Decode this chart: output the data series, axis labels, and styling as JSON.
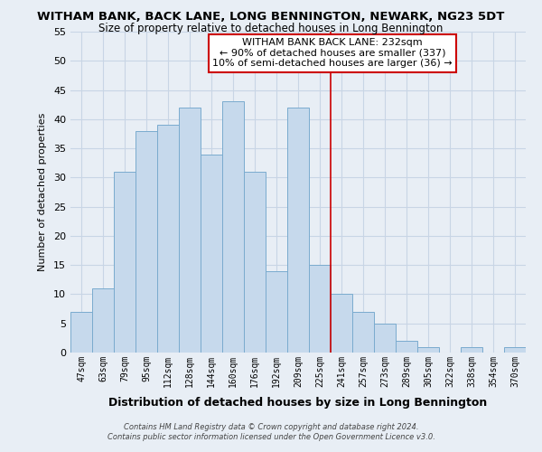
{
  "title": "WITHAM BANK, BACK LANE, LONG BENNINGTON, NEWARK, NG23 5DT",
  "subtitle": "Size of property relative to detached houses in Long Bennington",
  "xlabel": "Distribution of detached houses by size in Long Bennington",
  "ylabel": "Number of detached properties",
  "bar_color": "#c6d9ec",
  "bar_edge_color": "#7aabce",
  "background_color": "#e8eef5",
  "grid_color": "#c8d5e5",
  "bin_labels": [
    "47sqm",
    "63sqm",
    "79sqm",
    "95sqm",
    "112sqm",
    "128sqm",
    "144sqm",
    "160sqm",
    "176sqm",
    "192sqm",
    "209sqm",
    "225sqm",
    "241sqm",
    "257sqm",
    "273sqm",
    "289sqm",
    "305sqm",
    "322sqm",
    "338sqm",
    "354sqm",
    "370sqm"
  ],
  "bar_values": [
    7,
    11,
    31,
    38,
    39,
    42,
    34,
    43,
    31,
    14,
    42,
    15,
    10,
    7,
    5,
    2,
    1,
    0,
    1,
    0,
    1
  ],
  "ylim": [
    0,
    55
  ],
  "yticks": [
    0,
    5,
    10,
    15,
    20,
    25,
    30,
    35,
    40,
    45,
    50,
    55
  ],
  "vline_color": "#cc0000",
  "annotation_title": "WITHAM BANK BACK LANE: 232sqm",
  "annotation_line1": "← 90% of detached houses are smaller (337)",
  "annotation_line2": "10% of semi-detached houses are larger (36) →",
  "annotation_box_color": "#ffffff",
  "annotation_box_edge": "#cc0000",
  "footnote1": "Contains HM Land Registry data © Crown copyright and database right 2024.",
  "footnote2": "Contains public sector information licensed under the Open Government Licence v3.0."
}
